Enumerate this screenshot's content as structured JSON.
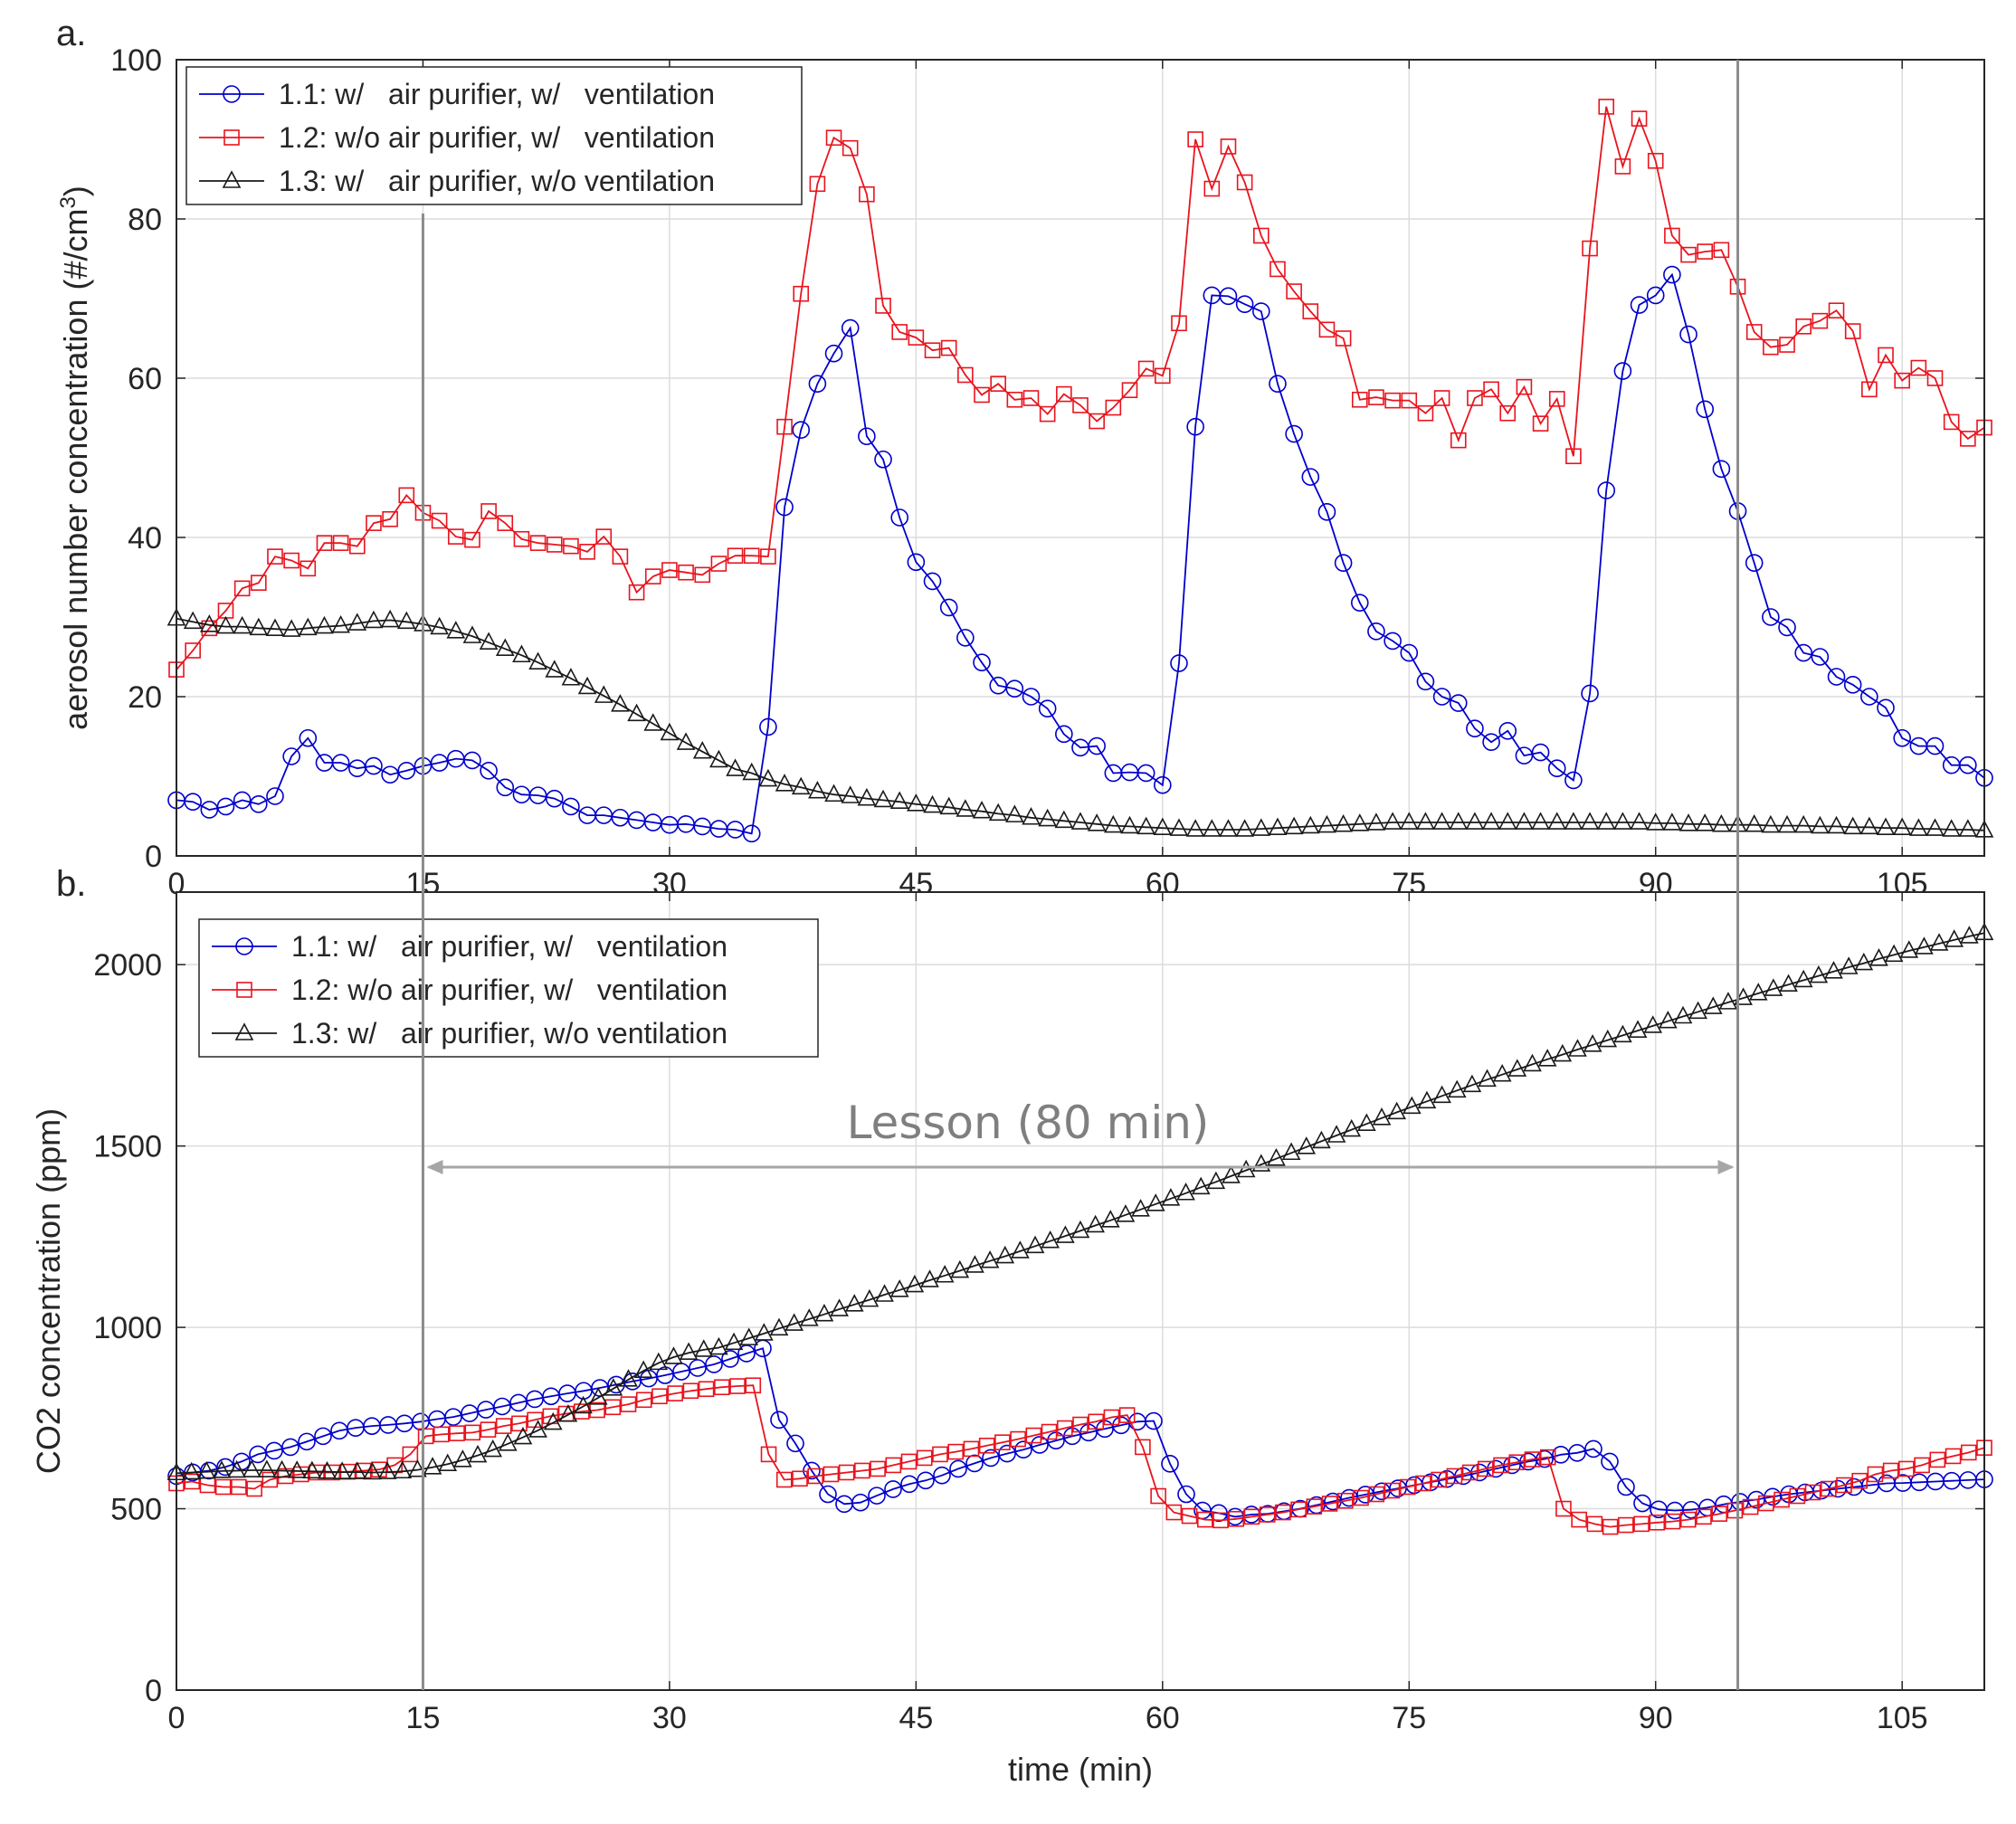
{
  "chart_data": [
    {
      "type": "line",
      "panel_label": "a.",
      "title": "",
      "xlabel": "",
      "ylabel": "aerosol number concentration (#/cm",
      "ylabel_sup": "3",
      "ylabel_close": ")",
      "xlim": [
        0,
        110
      ],
      "ylim": [
        0,
        100
      ],
      "xticks": [
        "0",
        "15",
        "30",
        "45",
        "60",
        "75",
        "90",
        "105"
      ],
      "yticks": [
        "0",
        "20",
        "40",
        "60",
        "80",
        "100"
      ],
      "grid": true,
      "legend_position": "top-left",
      "series": [
        {
          "name": "1.1: w/   air purifier, w/   ventilation",
          "color": "#0000cc",
          "marker": "circle",
          "values": [
            7,
            6.8,
            5.8,
            6.2,
            7,
            6.5,
            7.5,
            12.5,
            14.8,
            11.7,
            11.7,
            11,
            11.3,
            10.2,
            10.7,
            11.3,
            11.7,
            12.2,
            12,
            10.7,
            8.6,
            7.7,
            7.6,
            7.2,
            6.2,
            5.1,
            5.1,
            4.8,
            4.5,
            4.2,
            3.9,
            4,
            3.7,
            3.4,
            3.3,
            2.8,
            16.2,
            43.8,
            53.5,
            59.3,
            63.1,
            66.3,
            52.7,
            49.8,
            42.5,
            36.9,
            34.5,
            31.2,
            27.4,
            24.3,
            21.4,
            21,
            20,
            18.5,
            15.3,
            13.6,
            13.8,
            10.4,
            10.5,
            10.4,
            8.9,
            24.2,
            53.9,
            70.4,
            70.3,
            69.3,
            68.4,
            59.3,
            53,
            47.6,
            43.2,
            36.8,
            31.8,
            28.2,
            27,
            25.5,
            21.9,
            20,
            19.2,
            16,
            14.3,
            15.7,
            12.6,
            13,
            11,
            9.5,
            20.4,
            45.9,
            60.9,
            69.2,
            70.4,
            73,
            65.5,
            56.1,
            48.6,
            43.3,
            36.8,
            30,
            28.7,
            25.5,
            25,
            22.5,
            21.5,
            20,
            18.6,
            14.8,
            13.8,
            13.8,
            11.4,
            11.4,
            9.8
          ]
        },
        {
          "name": "1.2: w/o air purifier, w/   ventilation",
          "color": "#e8141e",
          "marker": "square",
          "values": [
            23.4,
            25.8,
            28.6,
            30.8,
            33.6,
            34.3,
            37.6,
            37.1,
            36.1,
            39.3,
            39.3,
            38.9,
            41.8,
            42.3,
            45.3,
            43.1,
            42.1,
            40.1,
            39.7,
            43.3,
            41.8,
            39.8,
            39.3,
            39.1,
            38.9,
            38.2,
            40.1,
            37.6,
            33.1,
            35.1,
            35.9,
            35.6,
            35.3,
            36.7,
            37.7,
            37.7,
            37.6,
            53.9,
            70.6,
            84.4,
            90.2,
            88.9,
            83.1,
            69.1,
            65.8,
            65.1,
            63.5,
            63.8,
            60.4,
            57.9,
            59.3,
            57.3,
            57.5,
            55.5,
            58,
            56.6,
            54.6,
            56.3,
            58.5,
            61.2,
            60.3,
            66.9,
            90,
            83.8,
            89.1,
            84.6,
            77.9,
            73.7,
            70.9,
            68.4,
            66.1,
            65,
            57.3,
            57.6,
            57.2,
            57.2,
            55.6,
            57.5,
            52.2,
            57.5,
            58.6,
            55.6,
            58.9,
            54.3,
            57.4,
            50.2,
            76.3,
            94.1,
            86.6,
            92.6,
            87.3,
            77.9,
            75.5,
            75.9,
            76.1,
            71.5,
            65.8,
            63.9,
            64.2,
            66.5,
            67.2,
            68.5,
            65.9,
            58.6,
            62.9,
            59.7,
            61.3,
            60,
            54.5,
            52.4,
            53.8
          ]
        },
        {
          "name": "1.3: w/   air purifier, w/o ventilation",
          "color": "#1a1a1a",
          "marker": "triangle",
          "values": [
            29.8,
            29.4,
            29,
            28.8,
            28.8,
            28.6,
            28.5,
            28.4,
            28.6,
            28.8,
            28.9,
            29.2,
            29.5,
            29.6,
            29.4,
            29.1,
            28.7,
            28.2,
            27.6,
            26.8,
            26,
            25.2,
            24.3,
            23.3,
            22.3,
            21.2,
            20.1,
            19,
            17.8,
            16.6,
            15.4,
            14.2,
            13.1,
            12,
            10.9,
            10.4,
            9.6,
            9,
            8.6,
            8.1,
            7.7,
            7.5,
            7.2,
            7,
            6.8,
            6.5,
            6.3,
            6.1,
            5.8,
            5.6,
            5.3,
            5.1,
            4.8,
            4.6,
            4.4,
            4.2,
            4,
            3.8,
            3.7,
            3.6,
            3.5,
            3.4,
            3.3,
            3.3,
            3.3,
            3.3,
            3.4,
            3.5,
            3.6,
            3.7,
            3.8,
            3.9,
            4,
            4.1,
            4.2,
            4.2,
            4.2,
            4.2,
            4.2,
            4.2,
            4.2,
            4.2,
            4.2,
            4.2,
            4.2,
            4.2,
            4.2,
            4.2,
            4.2,
            4.2,
            4.1,
            4.1,
            4,
            4,
            3.9,
            3.9,
            3.9,
            3.8,
            3.8,
            3.8,
            3.7,
            3.7,
            3.6,
            3.6,
            3.5,
            3.5,
            3.4,
            3.4,
            3.3,
            3.3,
            3.2
          ]
        }
      ]
    },
    {
      "type": "line",
      "panel_label": "b.",
      "title": "",
      "xlabel": "time (min)",
      "ylabel": "CO2 concentration (ppm)",
      "xlim": [
        0,
        110
      ],
      "ylim": [
        0,
        2200
      ],
      "xticks": [
        "0",
        "15",
        "30",
        "45",
        "60",
        "75",
        "90",
        "105"
      ],
      "yticks": [
        "0",
        "500",
        "1000",
        "1500",
        "2000"
      ],
      "grid": true,
      "legend_position": "top-left",
      "annotation": "Lesson (80 min)",
      "lesson_start_min": 15,
      "lesson_end_min": 95,
      "series": [
        {
          "name": "1.1: w/   air purifier, w/   ventilation",
          "color": "#0000cc",
          "marker": "circle",
          "values": [
            590,
            600,
            605,
            615,
            630,
            650,
            660,
            670,
            685,
            700,
            715,
            723,
            728,
            731,
            735,
            740,
            747,
            753,
            763,
            773,
            782,
            792,
            802,
            810,
            818,
            825,
            833,
            842,
            851,
            859,
            868,
            878,
            888,
            898,
            913,
            928,
            942,
            745,
            680,
            605,
            540,
            513,
            517,
            536,
            554,
            568,
            578,
            592,
            610,
            625,
            640,
            652,
            663,
            676,
            688,
            700,
            710,
            720,
            730,
            740,
            742,
            624,
            540,
            495,
            488,
            478,
            484,
            486,
            493,
            500,
            510,
            520,
            530,
            539,
            548,
            556,
            565,
            573,
            582,
            590,
            600,
            610,
            620,
            630,
            637,
            649,
            654,
            665,
            630,
            560,
            515,
            498,
            495,
            497,
            503,
            512,
            519,
            525,
            533,
            540,
            545,
            550,
            555,
            560,
            565,
            570,
            571,
            573,
            575,
            577,
            579,
            581
          ]
        },
        {
          "name": "1.2: w/o air purifier, w/   ventilation",
          "color": "#e8141e",
          "marker": "square",
          "values": [
            570,
            575,
            565,
            560,
            560,
            555,
            580,
            590,
            595,
            600,
            600,
            602,
            605,
            608,
            620,
            650,
            700,
            705,
            708,
            710,
            718,
            728,
            735,
            745,
            755,
            762,
            768,
            772,
            780,
            788,
            800,
            810,
            818,
            825,
            830,
            835,
            838,
            840,
            650,
            580,
            583,
            590,
            595,
            600,
            605,
            610,
            620,
            630,
            640,
            650,
            657,
            665,
            674,
            683,
            692,
            702,
            712,
            722,
            732,
            740,
            752,
            758,
            670,
            535,
            490,
            480,
            470,
            468,
            472,
            478,
            484,
            490,
            498,
            506,
            514,
            522,
            530,
            540,
            550,
            560,
            570,
            580,
            590,
            600,
            610,
            620,
            628,
            636,
            642,
            500,
            470,
            458,
            450,
            455,
            458,
            462,
            465,
            470,
            478,
            486,
            495,
            505,
            515,
            525,
            535,
            545,
            555,
            565,
            577,
            595,
            605,
            610,
            620,
            635,
            645,
            655,
            668
          ]
        },
        {
          "name": "1.3: w/   air purifier, w/o ventilation",
          "color": "#1a1a1a",
          "marker": "triangle",
          "values": [
            598,
            600,
            602,
            604,
            605,
            606,
            606,
            605,
            604,
            603,
            602,
            601,
            601,
            600,
            601,
            603,
            607,
            614,
            623,
            634,
            647,
            662,
            679,
            697,
            716,
            737,
            759,
            782,
            806,
            831,
            856,
            880,
            902,
            918,
            930,
            938,
            944,
            957,
            970,
            983,
            997,
            1010,
            1023,
            1036,
            1050,
            1063,
            1076,
            1090,
            1103,
            1116,
            1130,
            1143,
            1156,
            1170,
            1183,
            1196,
            1210,
            1224,
            1238,
            1252,
            1266,
            1281,
            1295,
            1310,
            1325,
            1340,
            1355,
            1370,
            1386,
            1401,
            1417,
            1433,
            1449,
            1465,
            1481,
            1497,
            1513,
            1529,
            1545,
            1561,
            1577,
            1593,
            1608,
            1623,
            1638,
            1653,
            1668,
            1683,
            1697,
            1711,
            1725,
            1739,
            1752,
            1766,
            1779,
            1792,
            1805,
            1818,
            1831,
            1844,
            1857,
            1870,
            1883,
            1896,
            1908,
            1921,
            1933,
            1945,
            1957,
            1969,
            1981,
            1993,
            2004,
            2016,
            2027,
            2038,
            2048,
            2058,
            2068,
            2078,
            2087
          ]
        }
      ]
    }
  ]
}
